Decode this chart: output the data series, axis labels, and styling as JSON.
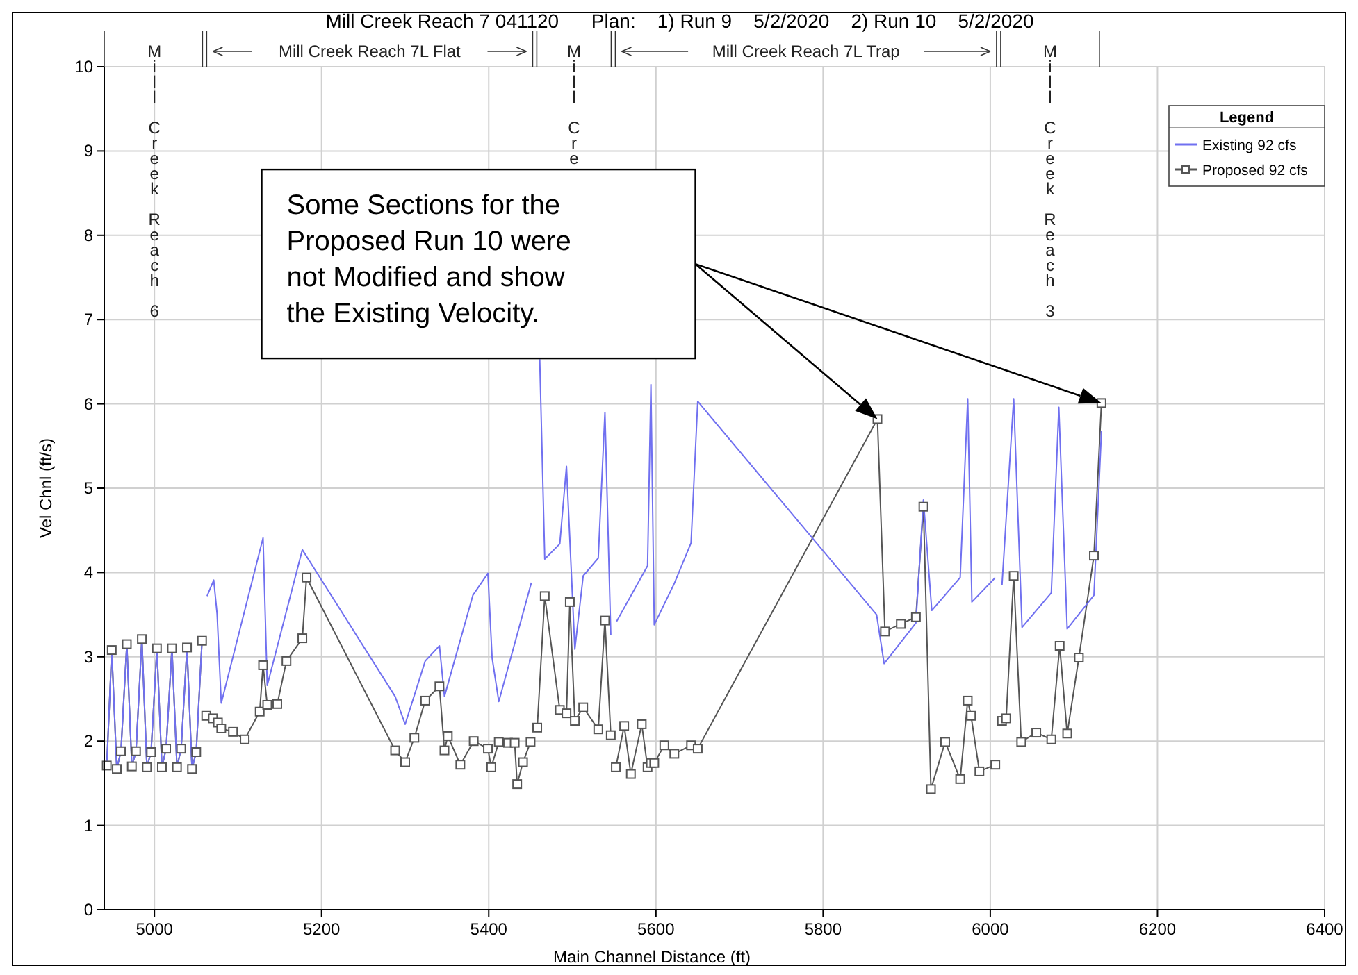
{
  "chart_data": {
    "type": "line",
    "title": "Mill Creek Reach 7 041120      Plan:    1) Run 9    5/2/2020    2) Run 10    5/2/2020",
    "xlabel": "Main Channel Distance (ft)",
    "ylabel": "Vel Chnl (ft/s)",
    "legend_title": "Legend",
    "xlim": [
      4940,
      6400
    ],
    "xticks": [
      5000,
      5200,
      5400,
      5600,
      5800,
      6000,
      6200,
      6400
    ],
    "ylim": [
      0,
      10
    ],
    "yticks": [
      0,
      1,
      2,
      3,
      4,
      5,
      6,
      7,
      8,
      9,
      10
    ],
    "grid": true,
    "legend": "top right",
    "line_style": "solid",
    "annotations": [
      "Mill Creek Reach 6",
      "Mill Creek Reach 7L Flat",
      "Mill Cre",
      "Mill Creek Reach 7L Trap",
      "Mill Creek Reach 3",
      "Some Sections for the Proposed Run 10 were not Modified and show the Existing Velocity."
    ],
    "series": [
      {
        "name": "Existing 92 cfs",
        "color": "#7070f0",
        "marker": "none",
        "x": [
          4943,
          4949,
          4955,
          4960,
          4967,
          4973,
          4978,
          4985,
          4991,
          4996,
          5003,
          5009,
          5014,
          5021,
          5027,
          5032,
          5039,
          5045,
          5050,
          5057,
          5060,
          5063,
          5071,
          5075,
          5080,
          5130,
          5135,
          5177,
          5288,
          5300,
          5324,
          5341,
          5347,
          5381,
          5399,
          5404,
          5412,
          5451,
          5455,
          5461,
          5467,
          5485,
          5493,
          5503,
          5513,
          5531,
          5539,
          5546,
          5549,
          5553,
          5590,
          5594,
          5598,
          5622,
          5642,
          5650,
          5864,
          5873,
          5911,
          5920,
          5930,
          5964,
          5973,
          5978,
          6006,
          6010,
          6014,
          6028,
          6038,
          6073,
          6082,
          6092,
          6124,
          6133
        ],
        "values": [
          1.71,
          3.08,
          1.67,
          1.88,
          3.15,
          1.7,
          1.88,
          3.21,
          1.69,
          1.87,
          3.1,
          1.69,
          1.91,
          3.1,
          1.69,
          1.91,
          3.11,
          1.67,
          1.87,
          3.19,
          null,
          3.72,
          3.91,
          3.51,
          2.45,
          4.41,
          2.66,
          4.27,
          2.53,
          2.2,
          2.95,
          3.13,
          2.53,
          3.73,
          3.99,
          2.99,
          2.47,
          3.88,
          null,
          6.53,
          4.16,
          4.34,
          5.26,
          3.09,
          3.96,
          4.17,
          5.9,
          3.26,
          null,
          3.42,
          4.08,
          6.23,
          3.38,
          3.87,
          4.35,
          6.03,
          3.5,
          2.92,
          3.4,
          4.86,
          3.55,
          3.94,
          6.06,
          3.65,
          3.94,
          null,
          3.85,
          6.06,
          3.35,
          3.76,
          5.96,
          3.33,
          3.73,
          5.68
        ]
      },
      {
        "name": "Proposed 92 cfs",
        "color": "#555555",
        "marker": "square",
        "x": [
          4943,
          4949,
          4955,
          4960,
          4967,
          4973,
          4978,
          4985,
          4991,
          4996,
          5003,
          5009,
          5014,
          5021,
          5027,
          5032,
          5039,
          5045,
          5050,
          5057,
          5060,
          5062,
          5070,
          5076,
          5080,
          5094,
          5108,
          5126,
          5130,
          5135,
          5147,
          5158,
          5177,
          5182,
          5288,
          5300,
          5311,
          5324,
          5341,
          5347,
          5351,
          5366,
          5382,
          5399,
          5403,
          5412,
          5423,
          5431,
          5434,
          5441,
          5450,
          5455,
          5458,
          5467,
          5485,
          5493,
          5497,
          5503,
          5513,
          5531,
          5539,
          5546,
          5549,
          5552,
          5562,
          5570,
          5583,
          5590,
          5594,
          5598,
          5610,
          5622,
          5642,
          5650,
          5865,
          5874,
          5893,
          5911,
          5920,
          5929,
          5946,
          5964,
          5973,
          5977,
          5987,
          6006,
          6010,
          6014,
          6019,
          6028,
          6037,
          6055,
          6073,
          6083,
          6092,
          6106,
          6124,
          6133
        ],
        "values": [
          1.71,
          3.08,
          1.67,
          1.88,
          3.15,
          1.7,
          1.88,
          3.21,
          1.69,
          1.87,
          3.1,
          1.69,
          1.91,
          3.1,
          1.69,
          1.91,
          3.11,
          1.67,
          1.87,
          3.19,
          null,
          2.3,
          2.27,
          2.22,
          2.15,
          2.11,
          2.02,
          2.35,
          2.9,
          2.43,
          2.44,
          2.95,
          3.22,
          3.94,
          1.89,
          1.75,
          2.04,
          2.48,
          2.65,
          1.89,
          2.06,
          1.72,
          2.0,
          1.91,
          1.69,
          1.99,
          1.98,
          1.98,
          1.49,
          1.75,
          1.99,
          null,
          2.16,
          3.72,
          2.37,
          2.33,
          3.65,
          2.24,
          2.4,
          2.14,
          3.43,
          2.07,
          null,
          1.69,
          2.18,
          1.61,
          2.2,
          1.69,
          1.74,
          1.74,
          1.95,
          1.85,
          1.95,
          1.91,
          5.82,
          3.3,
          3.39,
          3.47,
          4.78,
          1.43,
          1.99,
          1.55,
          2.48,
          2.3,
          1.64,
          1.72,
          null,
          2.24,
          2.27,
          3.96,
          1.99,
          2.1,
          2.02,
          3.13,
          2.09,
          2.99,
          4.2,
          6.01
        ]
      }
    ]
  }
}
